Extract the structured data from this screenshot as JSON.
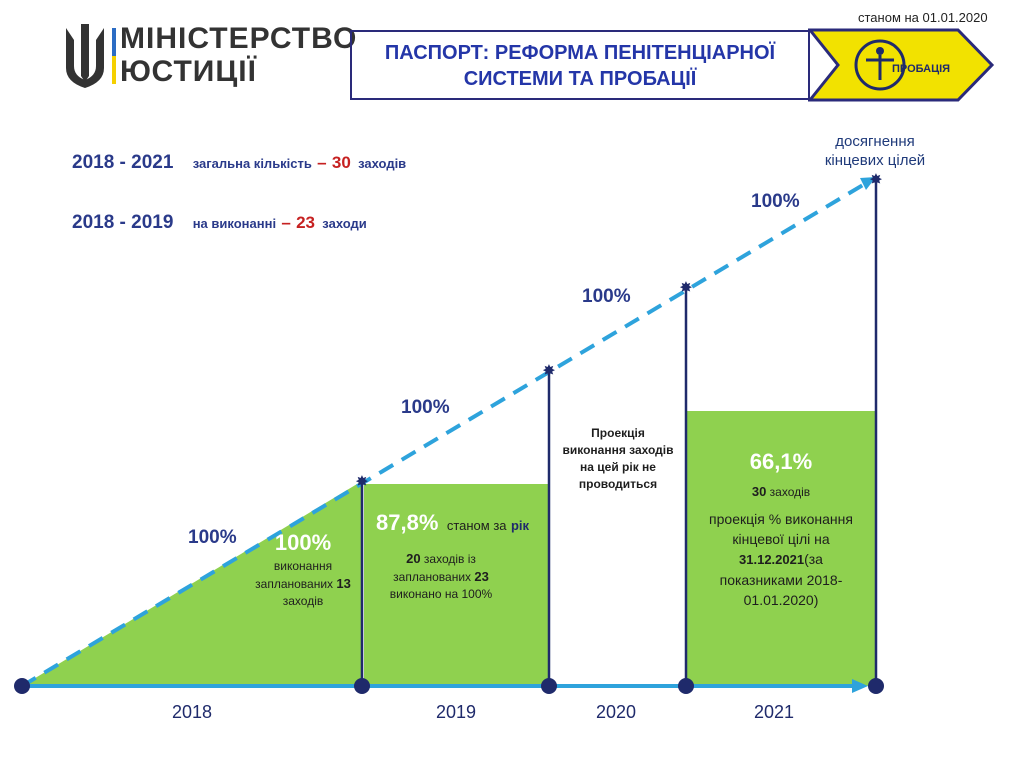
{
  "header": {
    "as_of": "станом на 01.01.2020",
    "ministry_line1": "МІНІСТЕРСТВО",
    "ministry_line2": "ЮСТИЦІЇ",
    "passport_line1": "ПАСПОРТ: РЕФОРМА ПЕНІТЕНЦІАРНОЇ",
    "passport_line2": "СИСТЕМИ ТА ПРОБАЦІЇ",
    "probation_logo_text": "ПРОБАЦІЯ",
    "colors": {
      "navy": "#2a2a7a",
      "yellow": "#f2e200",
      "blue": "#2436a8"
    }
  },
  "summary": {
    "row1": {
      "years": "2018 - 2021",
      "label": "загальна кількість",
      "dash": "–",
      "count": "30",
      "unit": "заходів"
    },
    "row2": {
      "years": "2018 - 2019",
      "label": "на виконанні",
      "dash": "–",
      "count": "23",
      "unit": "заходи"
    }
  },
  "chart": {
    "goal_line1": "досягнення",
    "goal_line2": "кінцевих цілей",
    "slope_labels": [
      "100%",
      "100%",
      "100%",
      "100%"
    ],
    "years": [
      "2018",
      "2019",
      "2020",
      "2021"
    ],
    "block_2018": {
      "pct": "100%",
      "line1": "виконання",
      "line2": "запланованих",
      "count": "13",
      "line3": "заходів"
    },
    "block_2019": {
      "pct": "87,8%",
      "suffix_a": "станом за",
      "suffix_b": "рік",
      "count_done": "20",
      "line1": "заходів із",
      "line2": "запланованих",
      "count_planned": "23",
      "line3": "виконано на 100%"
    },
    "block_2020": {
      "line1": "Проекція",
      "line2": "виконання заходів",
      "line3": "на цей рік не",
      "line4": "проводиться"
    },
    "block_2021": {
      "pct": "66,1%",
      "count": "30",
      "count_unit": "заходів",
      "line1": "проекція % виконання",
      "line2": "кінцевої цілі на",
      "date": "31.12.2021",
      "line3": "(за",
      "line4": "показниками 2018-",
      "line5": "01.01.2020)"
    },
    "colors": {
      "green": "#8fd14f",
      "dash": "#2ea3dc",
      "axis": "#2ea3dc",
      "node": "#1f2a6b"
    }
  }
}
